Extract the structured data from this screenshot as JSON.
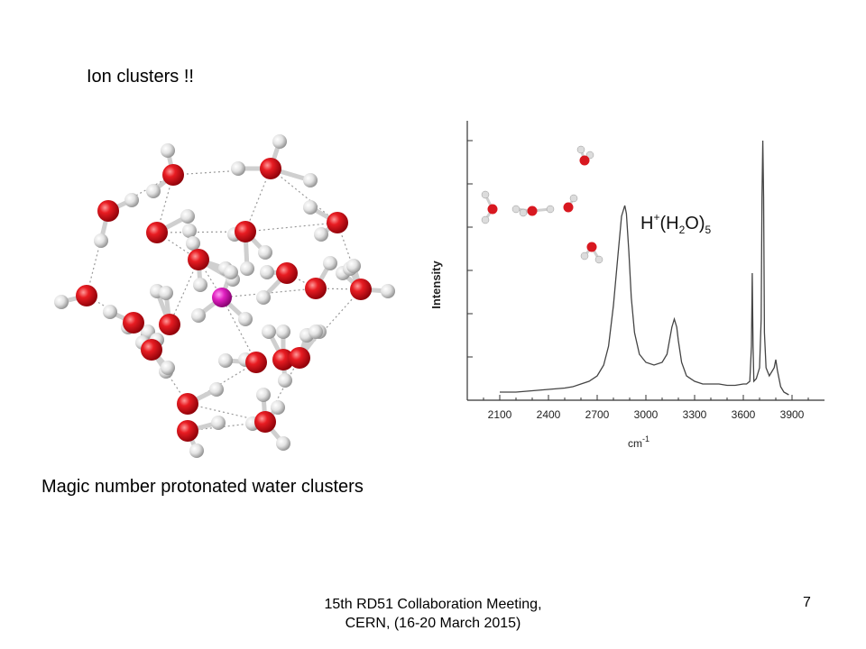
{
  "slide": {
    "title": "Ion clusters !!",
    "caption": "Magic number protonated water clusters",
    "footer_line1": "15th RD51 Collaboration Meeting,",
    "footer_line2": "CERN, (16-20 March 2015)",
    "page_number": "7"
  },
  "figure_left": {
    "atom_colors": {
      "oxygen": "#e0141c",
      "hydrogen": "#e8e8e8",
      "central_ion": "#e020c0"
    }
  },
  "chart_data": {
    "type": "line",
    "title": "",
    "annotation": {
      "base": "H",
      "sup": "+",
      "formula_open": "(H",
      "sub": "2",
      "formula_mid": "O)",
      "sub2": "5"
    },
    "xlabel": "cm",
    "xlabel_sup": "-1",
    "ylabel": "Intensity",
    "xlim": [
      1900,
      4100
    ],
    "ylim": [
      0,
      1
    ],
    "x_ticks": [
      2100,
      2400,
      2700,
      3000,
      3300,
      3600,
      3900
    ],
    "grid": false,
    "series": [
      {
        "color": "#444444",
        "x": [
          2100,
          2200,
          2300,
          2400,
          2500,
          2550,
          2600,
          2650,
          2700,
          2740,
          2770,
          2800,
          2830,
          2850,
          2870,
          2880,
          2895,
          2910,
          2930,
          2960,
          3000,
          3050,
          3100,
          3130,
          3160,
          3175,
          3190,
          3200,
          3220,
          3250,
          3300,
          3350,
          3400,
          3450,
          3500,
          3550,
          3600,
          3620,
          3640,
          3650,
          3655,
          3660,
          3665,
          3680,
          3700,
          3710,
          3715,
          3720,
          3725,
          3730,
          3740,
          3760,
          3790,
          3800,
          3810,
          3820,
          3830,
          3850,
          3880
        ],
        "y": [
          0.03,
          0.03,
          0.035,
          0.04,
          0.045,
          0.05,
          0.06,
          0.07,
          0.09,
          0.13,
          0.2,
          0.35,
          0.55,
          0.68,
          0.72,
          0.69,
          0.55,
          0.38,
          0.25,
          0.17,
          0.14,
          0.13,
          0.14,
          0.17,
          0.27,
          0.3,
          0.27,
          0.22,
          0.14,
          0.09,
          0.07,
          0.06,
          0.06,
          0.06,
          0.055,
          0.055,
          0.06,
          0.06,
          0.07,
          0.2,
          0.47,
          0.2,
          0.07,
          0.08,
          0.12,
          0.3,
          0.75,
          0.96,
          0.75,
          0.25,
          0.12,
          0.09,
          0.12,
          0.15,
          0.11,
          0.08,
          0.05,
          0.03,
          0.02
        ]
      }
    ]
  }
}
